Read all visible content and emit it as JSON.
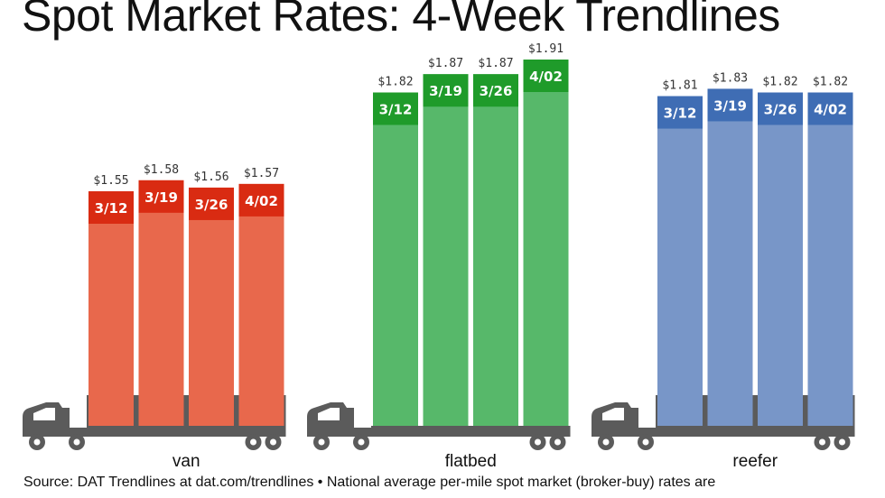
{
  "title": "Spot Market Rates: 4-Week Trendlines",
  "source": "Source: DAT Trendlines at dat.com/trendlines • National average per-mile spot market (broker-buy) rates are",
  "chart_data": {
    "type": "bar",
    "title": "Spot Market Rates: 4-Week Trendlines",
    "ylim": [
      0,
      2.2
    ],
    "grid": false,
    "groups": [
      {
        "name": "van",
        "color": "#e8684c",
        "cap_color": "#d92b12",
        "categories": [
          "3/12",
          "3/19",
          "3/26",
          "4/02"
        ],
        "values": [
          1.55,
          1.58,
          1.56,
          1.57
        ],
        "value_labels": [
          "$1.55",
          "$1.58",
          "$1.56",
          "$1.57"
        ]
      },
      {
        "name": "flatbed",
        "color": "#57b86a",
        "cap_color": "#1f9b2a",
        "categories": [
          "3/12",
          "3/19",
          "3/26",
          "4/02"
        ],
        "values": [
          1.82,
          1.87,
          1.87,
          1.91
        ],
        "value_labels": [
          "$1.82",
          "$1.87",
          "$1.87",
          "$1.91"
        ]
      },
      {
        "name": "reefer",
        "color": "#7896c8",
        "cap_color": "#3f6db4",
        "categories": [
          "3/12",
          "3/19",
          "3/26",
          "4/02"
        ],
        "values": [
          1.81,
          1.83,
          1.82,
          1.82
        ],
        "value_labels": [
          "$1.81",
          "$1.83",
          "$1.82",
          "$1.82"
        ]
      }
    ]
  }
}
